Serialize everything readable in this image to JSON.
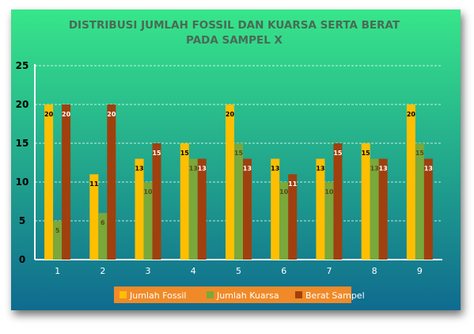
{
  "chart_data": {
    "type": "bar",
    "title": "DISTRIBUSI JUMLAH FOSSIL DAN KUARSA SERTA BERAT PADA SAMPEL X",
    "title_lines": [
      "DISTRIBUSI JUMLAH FOSSIL DAN KUARSA SERTA BERAT",
      "PADA SAMPEL X"
    ],
    "categories": [
      "1",
      "2",
      "3",
      "4",
      "5",
      "6",
      "7",
      "8",
      "9"
    ],
    "series": [
      {
        "name": "Jumlah Fossil",
        "color": "#ffbf00",
        "label_color": "#000000",
        "values": [
          20,
          11,
          13,
          15,
          20,
          13,
          13,
          15,
          20
        ]
      },
      {
        "name": "Jumlah Kuarsa",
        "color": "#7aa83a",
        "label_color": "#5a4a1a",
        "values": [
          5,
          6,
          10,
          13,
          15,
          10,
          10,
          13,
          15
        ]
      },
      {
        "name": "Berat Sampel",
        "color": "#a0400e",
        "label_color": "#ffffff",
        "values": [
          20,
          20,
          15,
          13,
          13,
          11,
          15,
          13,
          13
        ]
      }
    ],
    "yticks": [
      "0",
      "5",
      "10",
      "15",
      "20",
      "25"
    ],
    "ylim": [
      0,
      25
    ],
    "grid": true,
    "legend_position": "bottom",
    "data_labels": true,
    "background_gradient": [
      "#37e68a",
      "#0f6b8f"
    ],
    "legend_background": "#f08a28"
  }
}
